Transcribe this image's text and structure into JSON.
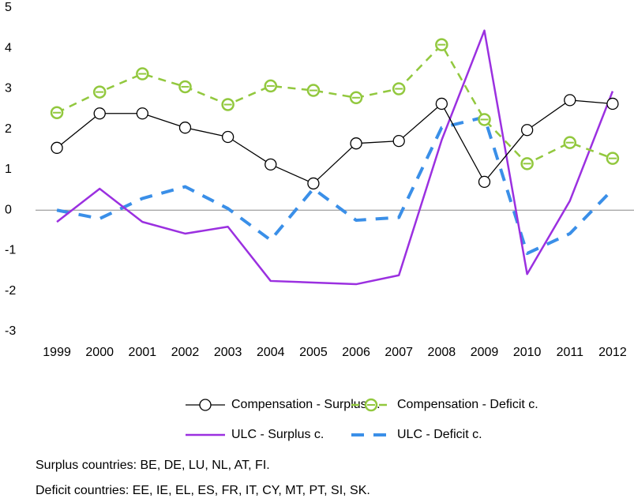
{
  "chart_data": {
    "type": "line",
    "categories": [
      "1999",
      "2000",
      "2001",
      "2002",
      "2003",
      "2004",
      "2005",
      "2006",
      "2007",
      "2008",
      "2009",
      "2010",
      "2011",
      "2012"
    ],
    "ylim": [
      -3,
      5
    ],
    "yticks": [
      -3,
      -2,
      -1,
      0,
      1,
      2,
      3,
      4,
      5
    ],
    "zero_line": true,
    "series": [
      {
        "name": "Compensation - Surplus c.",
        "color": "#000000",
        "width": 1.3,
        "dashed": false,
        "marker": "circle",
        "values": [
          1.54,
          2.39,
          2.39,
          2.04,
          1.81,
          1.13,
          0.66,
          1.65,
          1.71,
          2.63,
          0.7,
          1.98,
          2.72,
          2.63
        ]
      },
      {
        "name": "Compensation - Deficit c.",
        "color": "#92c83e",
        "width": 2.5,
        "dashed": true,
        "marker": "circle-bar",
        "values": [
          2.41,
          2.92,
          3.37,
          3.05,
          2.61,
          3.07,
          2.96,
          2.78,
          3.0,
          4.09,
          2.24,
          1.15,
          1.67,
          1.28
        ]
      },
      {
        "name": "ULC - Surplus c.",
        "color": "#9b30e0",
        "width": 2.5,
        "dashed": false,
        "marker": "none",
        "values": [
          -0.29,
          0.53,
          -0.29,
          -0.58,
          -0.41,
          -1.75,
          -1.79,
          -1.83,
          -1.61,
          1.73,
          4.44,
          -1.58,
          0.23,
          2.94
        ]
      },
      {
        "name": "ULC - Deficit c.",
        "color": "#3a8fe8",
        "width": 4,
        "dashed": true,
        "marker": "none",
        "values": [
          0,
          -0.21,
          0.29,
          0.58,
          0.04,
          -0.74,
          0.53,
          -0.25,
          -0.18,
          2.04,
          2.3,
          -1.07,
          -0.58,
          0.51
        ]
      }
    ],
    "notes": [
      "Surplus countries: BE, DE,  LU, NL, AT, FI.",
      "Deficit countries: EE,  IE, EL, ES, FR, IT, CY, MT,  PT, SI, SK."
    ]
  }
}
